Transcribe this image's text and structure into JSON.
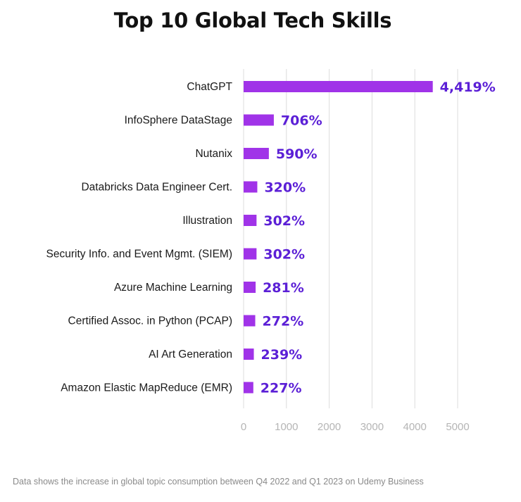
{
  "chart_data": {
    "type": "bar",
    "orientation": "horizontal",
    "title": "Top 10 Global Tech Skills",
    "categories": [
      "ChatGPT",
      "InfoSphere DataStage",
      "Nutanix",
      "Databricks Data Engineer Cert.",
      "Illustration",
      "Security Info. and Event Mgmt. (SIEM)",
      "Azure Machine Learning",
      "Certified Assoc. in Python (PCAP)",
      "AI Art Generation",
      "Amazon Elastic MapReduce (EMR)"
    ],
    "values": [
      4419,
      706,
      590,
      320,
      302,
      302,
      281,
      272,
      239,
      227
    ],
    "value_labels": [
      "4,419%",
      "706%",
      "590%",
      "320%",
      "302%",
      "302%",
      "281%",
      "272%",
      "239%",
      "227%"
    ],
    "xticks": [
      "0",
      "1000",
      "2000",
      "3000",
      "4000",
      "5000"
    ],
    "xlim": [
      0,
      5000
    ],
    "grid": "vertical",
    "legend": "none",
    "colors": {
      "bar": "#a033e8",
      "value_label": "#5b1fd6",
      "grid": "#dcdcdc",
      "tick_label": "#b5b5b5",
      "category_label": "#1a1a1a"
    }
  },
  "footnote": "Data shows the increase in global topic consumption between Q4 2022 and Q1 2023 on Udemy Business"
}
